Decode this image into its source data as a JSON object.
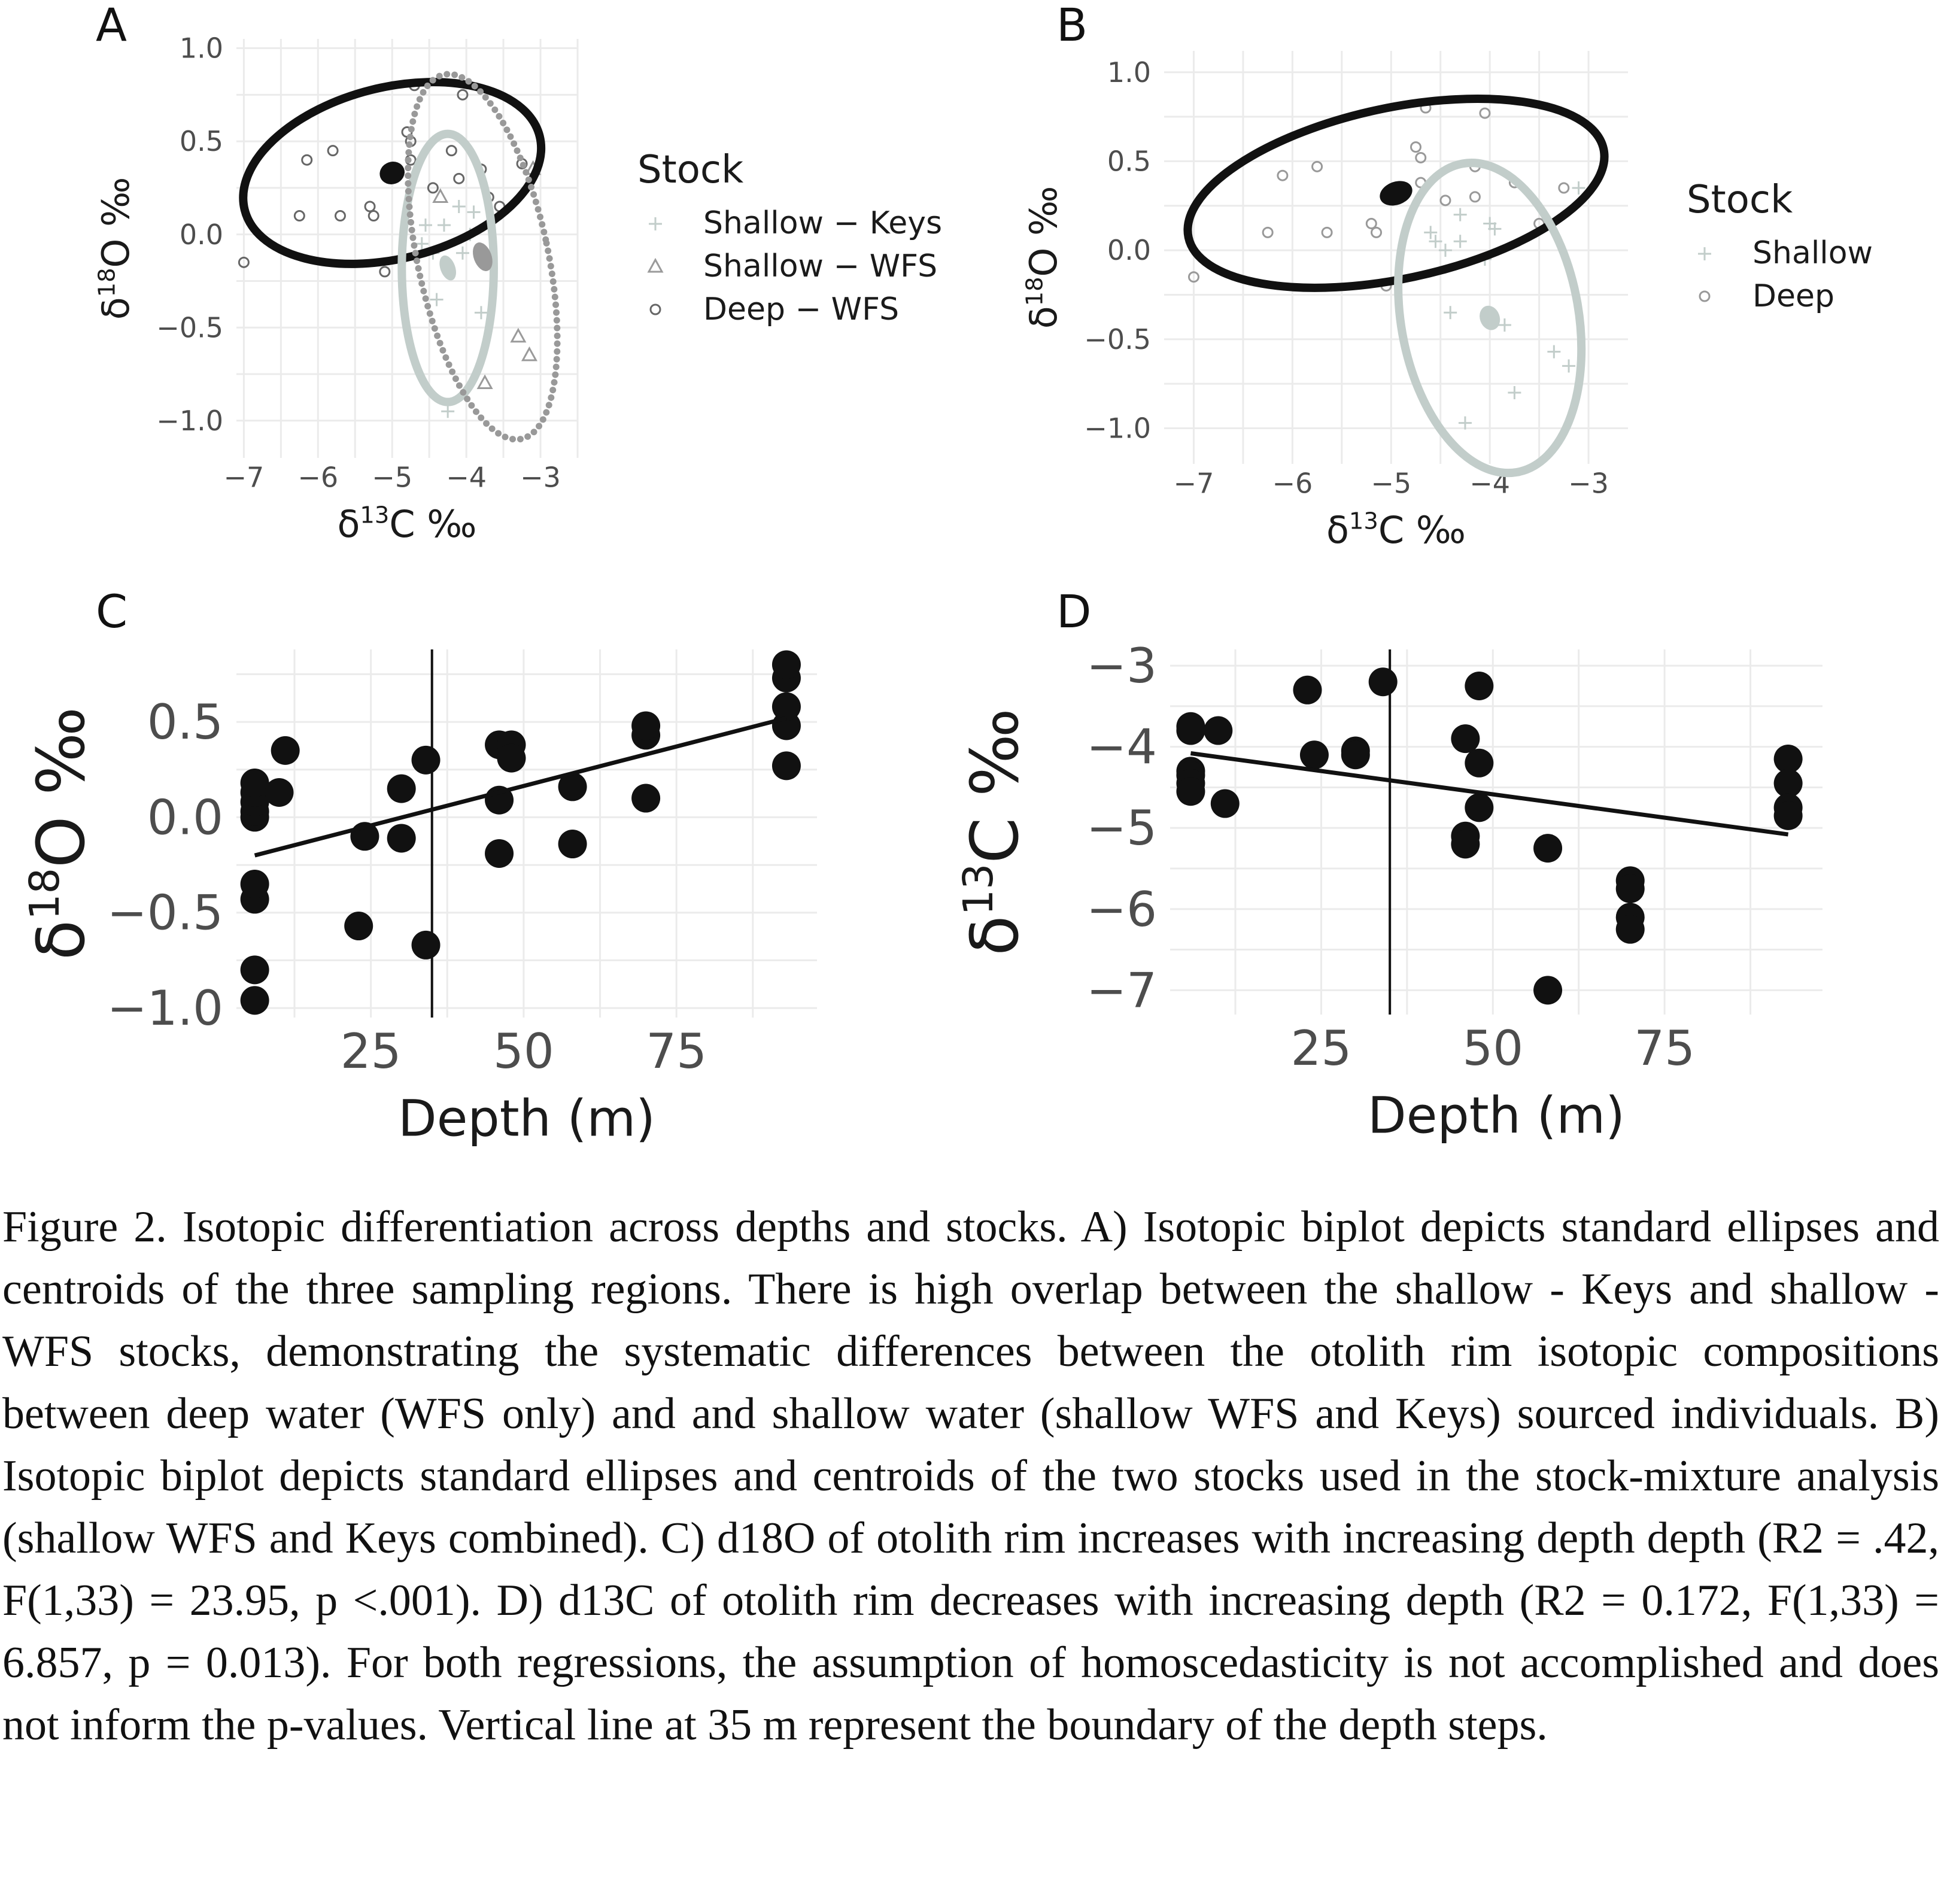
{
  "caption": "Figure 2. Isotopic differentiation across depths and stocks. A) Isotopic biplot depicts standard ellipses and centroids of the three sampling regions.  There is high overlap between the shallow - Keys and shallow - WFS stocks, demonstrating the systematic differences between the otolith rim isotopic compositions between deep water (WFS only) and and shallow water (shallow WFS and Keys) sourced individuals. B) Isotopic biplot depicts standard ellipses and centroids of the two stocks used in the stock-mixture analysis (shallow WFS and Keys combined). C) d18O of otolith rim increases with increasing depth depth (R2 = .42, F(1,33) = 23.95, p <.001). D) d13C of otolith rim decreases with increasing depth (R2 = 0.172, F(1,33)  = 6.857, p = 0.013). For both regressions, the assumption of homoscedasticity is not accomplished and does not inform the p-values. Vertical line at 35 m represent the boundary of the depth steps.",
  "colors": {
    "black": "#111111",
    "light_gray": "#c2cdca",
    "mid_gray": "#8a8a8a",
    "dot_gray": "#999999"
  },
  "chart_data": [
    {
      "panel": "A",
      "type": "scatter",
      "xlabel": "δ13C ‰",
      "ylabel": "δ18O ‰",
      "xlim": [
        -7.1,
        -2.5
      ],
      "ylim": [
        -1.2,
        1.05
      ],
      "xticks": [
        -7,
        -6,
        -5,
        -4,
        -3
      ],
      "yticks": [
        -1.0,
        -0.5,
        0.0,
        0.5,
        1.0
      ],
      "xtick_labels": [
        "−7",
        "−6",
        "−5",
        "−4",
        "−3"
      ],
      "ytick_labels": [
        "−1.0",
        "−0.5",
        "0.0",
        "0.5",
        "1.0"
      ],
      "legend_title": "Stock",
      "legend_position": "right",
      "series": [
        {
          "name": "Shallow − Keys",
          "marker": "plus",
          "color": "#c2cdca",
          "points": [
            [
              -4.55,
              0.05
            ],
            [
              -4.45,
              -0.1
            ],
            [
              -4.3,
              0.05
            ],
            [
              -4.1,
              0.15
            ],
            [
              -3.95,
              0.0
            ],
            [
              -4.05,
              -0.1
            ],
            [
              -4.4,
              -0.35
            ],
            [
              -3.8,
              -0.42
            ],
            [
              -4.25,
              -0.95
            ],
            [
              -4.6,
              -0.05
            ],
            [
              -3.9,
              0.12
            ]
          ]
        },
        {
          "name": "Shallow − WFS",
          "marker": "triangle",
          "color": "#9a9a9a",
          "points": [
            [
              -4.35,
              0.2
            ],
            [
              -3.75,
              -0.8
            ],
            [
              -3.3,
              -0.55
            ],
            [
              -3.15,
              -0.65
            ],
            [
              -3.1,
              0.35
            ]
          ]
        },
        {
          "name": "Deep − WFS",
          "marker": "circle",
          "color": "#666666",
          "points": [
            [
              -7.0,
              -0.15
            ],
            [
              -6.25,
              0.1
            ],
            [
              -6.15,
              0.4
            ],
            [
              -5.8,
              0.45
            ],
            [
              -5.7,
              0.1
            ],
            [
              -5.3,
              0.15
            ],
            [
              -5.25,
              0.1
            ],
            [
              -5.1,
              -0.2
            ],
            [
              -4.8,
              0.55
            ],
            [
              -4.75,
              0.5
            ],
            [
              -4.75,
              0.4
            ],
            [
              -4.7,
              0.8
            ],
            [
              -4.45,
              0.25
            ],
            [
              -4.2,
              0.45
            ],
            [
              -4.1,
              0.3
            ],
            [
              -4.05,
              0.75
            ],
            [
              -3.8,
              0.35
            ],
            [
              -3.25,
              0.38
            ],
            [
              -3.55,
              0.15
            ],
            [
              -3.7,
              0.2
            ],
            [
              -4.95,
              0.35
            ]
          ]
        }
      ],
      "ellipses": [
        {
          "name": "Deep − WFS",
          "center": [
            -5.0,
            0.33
          ],
          "rx_data": 2.05,
          "ry_data": 0.46,
          "angle_deg": 14,
          "stroke": "#111111",
          "style": "solid",
          "centroid_rx": 0.17,
          "centroid_ry": 0.06
        },
        {
          "name": "Shallow − Keys",
          "center": [
            -4.25,
            -0.18
          ],
          "rx_data": 0.62,
          "ry_data": 0.72,
          "angle_deg": 0,
          "stroke": "#c2cdca",
          "style": "solid",
          "centroid_rx": 0.1,
          "centroid_ry": 0.07
        },
        {
          "name": "Shallow − WFS",
          "center": [
            -3.78,
            -0.12
          ],
          "rx_data": 0.88,
          "ry_data": 1.0,
          "angle_deg": 12,
          "stroke": "#999999",
          "style": "dotted",
          "centroid_rx": 0.12,
          "centroid_ry": 0.08
        }
      ]
    },
    {
      "panel": "B",
      "type": "scatter",
      "xlabel": "δ13C ‰",
      "ylabel": "δ18O ‰",
      "xlim": [
        -7.3,
        -2.6
      ],
      "ylim": [
        -1.2,
        1.12
      ],
      "xticks": [
        -7,
        -6,
        -5,
        -4,
        -3
      ],
      "yticks": [
        -1.0,
        -0.5,
        0.0,
        0.5,
        1.0
      ],
      "xtick_labels": [
        "−7",
        "−6",
        "−5",
        "−4",
        "−3"
      ],
      "ytick_labels": [
        "−1.0",
        "−0.5",
        "0.0",
        "0.5",
        "1.0"
      ],
      "legend_title": "Stock",
      "legend_position": "right",
      "series": [
        {
          "name": "Shallow",
          "marker": "plus",
          "color": "#c2cdca",
          "points": [
            [
              -4.55,
              0.05
            ],
            [
              -4.45,
              0.0
            ],
            [
              -4.3,
              0.05
            ],
            [
              -4.3,
              0.2
            ],
            [
              -4.0,
              0.15
            ],
            [
              -4.05,
              -0.05
            ],
            [
              -4.4,
              -0.35
            ],
            [
              -3.85,
              -0.42
            ],
            [
              -3.75,
              -0.8
            ],
            [
              -3.35,
              -0.57
            ],
            [
              -3.2,
              -0.65
            ],
            [
              -4.25,
              -0.97
            ],
            [
              -4.6,
              0.1
            ],
            [
              -3.95,
              0.12
            ],
            [
              -3.1,
              0.35
            ]
          ]
        },
        {
          "name": "Deep",
          "marker": "circle",
          "color": "#999999",
          "points": [
            [
              -7.0,
              -0.15
            ],
            [
              -6.25,
              0.1
            ],
            [
              -6.1,
              0.42
            ],
            [
              -5.75,
              0.47
            ],
            [
              -5.65,
              0.1
            ],
            [
              -5.2,
              0.15
            ],
            [
              -5.15,
              0.1
            ],
            [
              -5.05,
              -0.2
            ],
            [
              -4.75,
              0.58
            ],
            [
              -4.7,
              0.52
            ],
            [
              -4.7,
              0.38
            ],
            [
              -4.65,
              0.8
            ],
            [
              -4.45,
              0.28
            ],
            [
              -4.15,
              0.47
            ],
            [
              -4.15,
              0.3
            ],
            [
              -4.05,
              0.77
            ],
            [
              -3.75,
              0.38
            ],
            [
              -3.25,
              0.35
            ],
            [
              -3.5,
              0.15
            ]
          ]
        }
      ],
      "ellipses": [
        {
          "name": "Deep",
          "center": [
            -4.95,
            0.32
          ],
          "rx_data": 2.15,
          "ry_data": 0.48,
          "angle_deg": 12,
          "stroke": "#111111",
          "style": "solid",
          "centroid_rx": 0.17,
          "centroid_ry": 0.065
        },
        {
          "name": "Shallow",
          "center": [
            -4.0,
            -0.38
          ],
          "rx_data": 0.9,
          "ry_data": 0.88,
          "angle_deg": 10,
          "stroke": "#c2cdca",
          "style": "solid",
          "centroid_rx": 0.1,
          "centroid_ry": 0.07
        }
      ]
    },
    {
      "panel": "C",
      "type": "scatter",
      "xlabel": "Depth (m)",
      "ylabel": "δ18O ‰",
      "xlim": [
        3,
        98
      ],
      "ylim": [
        -1.05,
        0.88
      ],
      "xticks": [
        25,
        50,
        75
      ],
      "yticks": [
        -1.0,
        -0.5,
        0.0,
        0.5
      ],
      "xtick_labels": [
        "25",
        "50",
        "75"
      ],
      "ytick_labels": [
        "−1.0",
        "−0.5",
        "0.0",
        "0.5"
      ],
      "vline_x": 35,
      "regression": {
        "x": [
          6,
          93
        ],
        "y": [
          -0.2,
          0.52
        ]
      },
      "points": [
        [
          6,
          -0.96
        ],
        [
          6,
          -0.8
        ],
        [
          6,
          -0.43
        ],
        [
          6,
          -0.35
        ],
        [
          6,
          0.0
        ],
        [
          6,
          0.03
        ],
        [
          6,
          0.08
        ],
        [
          6,
          0.13
        ],
        [
          6,
          0.18
        ],
        [
          10,
          0.13
        ],
        [
          11,
          0.35
        ],
        [
          23,
          -0.57
        ],
        [
          24,
          -0.1
        ],
        [
          30,
          -0.11
        ],
        [
          30,
          0.15
        ],
        [
          34,
          -0.67
        ],
        [
          34,
          0.3
        ],
        [
          46,
          -0.19
        ],
        [
          46,
          0.09
        ],
        [
          46,
          0.38
        ],
        [
          48,
          0.38
        ],
        [
          48,
          0.31
        ],
        [
          58,
          0.16
        ],
        [
          58,
          -0.14
        ],
        [
          70,
          0.1
        ],
        [
          70,
          0.43
        ],
        [
          70,
          0.48
        ],
        [
          93,
          0.27
        ],
        [
          93,
          0.48
        ],
        [
          93,
          0.58
        ],
        [
          93,
          0.73
        ],
        [
          93,
          0.8
        ]
      ]
    },
    {
      "panel": "D",
      "type": "scatter",
      "xlabel": "Depth (m)",
      "ylabel": "δ13C ‰",
      "xlim": [
        3,
        98
      ],
      "ylim": [
        -7.3,
        -2.8
      ],
      "xticks": [
        25,
        50,
        75
      ],
      "yticks": [
        -7,
        -6,
        -5,
        -4,
        -3
      ],
      "xtick_labels": [
        "25",
        "50",
        "75"
      ],
      "ytick_labels": [
        "−7",
        "−6",
        "−5",
        "−4",
        "−3"
      ],
      "vline_x": 35,
      "regression": {
        "x": [
          6,
          93
        ],
        "y": [
          -4.08,
          -5.08
        ]
      },
      "points": [
        [
          6,
          -3.75
        ],
        [
          6,
          -3.8
        ],
        [
          6,
          -4.3
        ],
        [
          6,
          -4.35
        ],
        [
          6,
          -4.45
        ],
        [
          6,
          -4.55
        ],
        [
          10,
          -3.8
        ],
        [
          11,
          -4.7
        ],
        [
          23,
          -3.3
        ],
        [
          24,
          -4.1
        ],
        [
          30,
          -4.05
        ],
        [
          30,
          -4.1
        ],
        [
          34,
          -3.2
        ],
        [
          46,
          -3.9
        ],
        [
          46,
          -5.1
        ],
        [
          46,
          -5.2
        ],
        [
          48,
          -3.25
        ],
        [
          48,
          -4.2
        ],
        [
          48,
          -4.75
        ],
        [
          58,
          -5.25
        ],
        [
          58,
          -7.0
        ],
        [
          70,
          -5.65
        ],
        [
          70,
          -5.75
        ],
        [
          70,
          -6.1
        ],
        [
          70,
          -6.25
        ],
        [
          93,
          -4.15
        ],
        [
          93,
          -4.45
        ],
        [
          93,
          -4.75
        ],
        [
          93,
          -4.85
        ]
      ]
    }
  ]
}
